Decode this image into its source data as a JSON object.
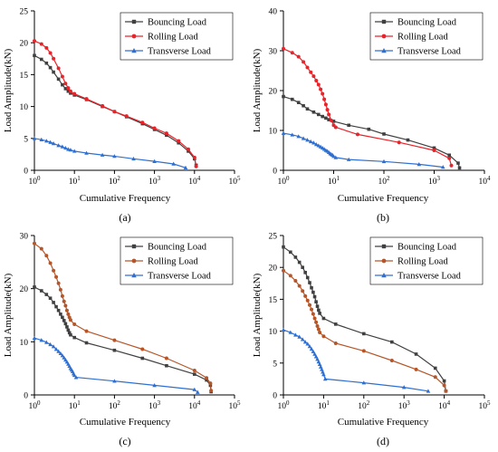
{
  "chart_data": [
    {
      "panel": "(a)",
      "type": "line",
      "xlabel": "Cumulative Frequency",
      "ylabel": "Load Amplitude(kN)",
      "xscale": "log",
      "xlim": [
        1,
        100000
      ],
      "ylim": [
        0,
        25
      ],
      "yticks": [
        0,
        5,
        10,
        15,
        20,
        25
      ],
      "legend": "top-right",
      "series": [
        {
          "name": "Bouncing Load",
          "color": "#404040",
          "marker": "square",
          "x": [
            1,
            1.5,
            2,
            2.5,
            3,
            4,
            5,
            6,
            7,
            8,
            10,
            20,
            50,
            100,
            200,
            500,
            1000,
            2000,
            4000,
            7000,
            10000,
            11000
          ],
          "y": [
            18,
            17.4,
            16.8,
            16.1,
            15.4,
            14.3,
            13.4,
            12.8,
            12.4,
            12.1,
            11.8,
            11.1,
            10,
            9.2,
            8.4,
            7.3,
            6.4,
            5.5,
            4.3,
            3,
            1.8,
            0.8
          ]
        },
        {
          "name": "Rolling Load",
          "color": "#e8242a",
          "marker": "circle",
          "x": [
            1,
            1.5,
            2,
            2.5,
            3,
            4,
            5,
            6,
            7,
            8,
            10,
            20,
            50,
            100,
            200,
            500,
            1000,
            2000,
            4000,
            7000,
            10000,
            11000
          ],
          "y": [
            20.3,
            19.8,
            19.2,
            18.4,
            17.5,
            16,
            14.7,
            13.6,
            12.9,
            12.4,
            12,
            11.2,
            10.1,
            9.2,
            8.5,
            7.5,
            6.6,
            5.8,
            4.6,
            3.3,
            2,
            0.6
          ]
        },
        {
          "name": "Transverse Load",
          "color": "#2e6fd1",
          "marker": "triangle",
          "x": [
            1,
            1.5,
            2,
            2.5,
            3,
            4,
            5,
            6,
            7,
            8,
            10,
            20,
            50,
            100,
            300,
            1000,
            3000,
            6000
          ],
          "y": [
            5,
            4.8,
            4.6,
            4.4,
            4.2,
            3.9,
            3.7,
            3.5,
            3.3,
            3.2,
            3,
            2.7,
            2.4,
            2.2,
            1.8,
            1.4,
            1,
            0.4
          ]
        }
      ]
    },
    {
      "panel": "(b)",
      "type": "line",
      "xlabel": "Cumulative Frequency",
      "ylabel": "Load Amplitude(kN)",
      "xscale": "log",
      "xlim": [
        1,
        10000
      ],
      "ylim": [
        0,
        40
      ],
      "yticks": [
        0,
        10,
        20,
        30,
        40
      ],
      "legend": "top-right",
      "series": [
        {
          "name": "Bouncing Load",
          "color": "#404040",
          "marker": "square",
          "x": [
            1,
            1.5,
            2,
            2.5,
            3,
            4,
            5,
            6,
            7,
            8,
            10,
            20,
            50,
            100,
            300,
            1000,
            2000,
            3000,
            3200
          ],
          "y": [
            18.5,
            17.8,
            17,
            16.2,
            15.4,
            14.6,
            14,
            13.5,
            13.1,
            12.7,
            12.3,
            11.3,
            10.3,
            9.1,
            7.6,
            5.6,
            3.8,
            1.8,
            0.6
          ]
        },
        {
          "name": "Rolling Load",
          "color": "#e8242a",
          "marker": "circle",
          "x": [
            1,
            1.5,
            2,
            2.5,
            3,
            3.5,
            4,
            4.5,
            5,
            5.5,
            6,
            6.5,
            7,
            7.5,
            8,
            9,
            10,
            11,
            30,
            200,
            1000,
            2000,
            2200
          ],
          "y": [
            30.5,
            29.5,
            28.5,
            27.2,
            25.8,
            24.6,
            23.6,
            22.5,
            21.5,
            20.3,
            19.2,
            17.8,
            16.5,
            15.2,
            14,
            12.5,
            11.3,
            10.8,
            9,
            7,
            5,
            3,
            1.2
          ]
        },
        {
          "name": "Transverse Load",
          "color": "#2e6fd1",
          "marker": "triangle",
          "x": [
            1,
            1.5,
            2,
            2.5,
            3,
            3.5,
            4,
            4.5,
            5,
            5.5,
            6,
            6.5,
            7,
            7.5,
            8,
            8.5,
            9,
            9.5,
            10,
            11,
            20,
            100,
            500,
            1500
          ],
          "y": [
            9.3,
            8.9,
            8.5,
            8,
            7.6,
            7.2,
            6.9,
            6.5,
            6.2,
            5.9,
            5.6,
            5.3,
            5,
            4.8,
            4.5,
            4.2,
            4,
            3.8,
            3.5,
            3.2,
            2.7,
            2.2,
            1.5,
            0.8
          ]
        }
      ]
    },
    {
      "panel": "(c)",
      "type": "line",
      "xlabel": "Cumulative Frequency",
      "ylabel": "Load Amplitude(kN)",
      "xscale": "log",
      "xlim": [
        1,
        100000
      ],
      "ylim": [
        0,
        30
      ],
      "yticks": [
        0,
        10,
        20,
        30
      ],
      "legend": "top-right",
      "series": [
        {
          "name": "Bouncing Load",
          "color": "#404040",
          "marker": "square",
          "x": [
            1,
            1.5,
            2,
            2.5,
            3,
            3.5,
            4,
            4.5,
            5,
            5.5,
            6,
            6.5,
            7,
            7.5,
            8,
            10,
            20,
            100,
            500,
            2000,
            10000,
            20000,
            25000,
            26000
          ],
          "y": [
            20.3,
            19.6,
            18.9,
            18.2,
            17.4,
            16.6,
            15.9,
            15.2,
            14.6,
            14,
            13.4,
            12.8,
            12.2,
            11.7,
            11.3,
            10.8,
            9.8,
            8.4,
            6.9,
            5.5,
            3.9,
            2.8,
            1.8,
            0.6
          ]
        },
        {
          "name": "Rolling Load",
          "color": "#b5562a",
          "marker": "circle",
          "x": [
            1,
            1.5,
            2,
            2.5,
            3,
            3.5,
            4,
            4.5,
            5,
            5.5,
            6,
            6.5,
            7,
            7.5,
            8,
            10,
            20,
            100,
            500,
            2000,
            10000,
            20000,
            25000,
            26000
          ],
          "y": [
            28.5,
            27.5,
            26.2,
            24.8,
            23.4,
            22.2,
            21,
            19.8,
            18.6,
            17.6,
            16.8,
            15.9,
            15.2,
            14.6,
            14.1,
            13.3,
            12,
            10.3,
            8.6,
            6.9,
            4.6,
            3.2,
            2.2,
            0.8
          ]
        },
        {
          "name": "Transverse Load",
          "color": "#2e6fd1",
          "marker": "triangle",
          "x": [
            1,
            1.5,
            2,
            2.5,
            3,
            3.5,
            4,
            4.5,
            5,
            5.5,
            6,
            6.5,
            7,
            7.5,
            8,
            8.5,
            9,
            9.5,
            10,
            11,
            100,
            1000,
            10000,
            12000
          ],
          "y": [
            10.7,
            10.3,
            9.9,
            9.5,
            9.1,
            8.6,
            8.2,
            7.8,
            7.4,
            7,
            6.6,
            6.2,
            5.8,
            5.4,
            5,
            4.7,
            4.4,
            4,
            3.7,
            3.3,
            2.6,
            1.8,
            1,
            0.5
          ]
        }
      ]
    },
    {
      "panel": "(d)",
      "type": "line",
      "xlabel": "Cumulative Frequency",
      "ylabel": "Load Amplitude(kN)",
      "xscale": "log",
      "xlim": [
        1,
        100000
      ],
      "ylim": [
        0,
        25
      ],
      "yticks": [
        0,
        5,
        10,
        15,
        20,
        25
      ],
      "legend": "top-right",
      "series": [
        {
          "name": "Bouncing Load",
          "color": "#404040",
          "marker": "square",
          "x": [
            1,
            1.5,
            2,
            2.5,
            3,
            3.5,
            4,
            4.5,
            5,
            5.5,
            6,
            6.5,
            7,
            7.5,
            8,
            10,
            20,
            100,
            500,
            2000,
            6000,
            10000,
            11000
          ],
          "y": [
            23.2,
            22.4,
            21.6,
            20.8,
            20,
            19.2,
            18.4,
            17.6,
            16.8,
            16.1,
            15.4,
            14.6,
            13.9,
            13.3,
            12.8,
            12,
            11.1,
            9.6,
            8.3,
            6.4,
            4.2,
            2.2,
            0.6
          ]
        },
        {
          "name": "Rolling Load",
          "color": "#b5562a",
          "marker": "circle",
          "x": [
            1,
            1.5,
            2,
            2.5,
            3,
            3.5,
            4,
            4.5,
            5,
            5.5,
            6,
            6.5,
            7,
            7.5,
            8,
            10,
            20,
            100,
            500,
            2000,
            6000,
            10000,
            11000
          ],
          "y": [
            19.5,
            18.7,
            17.9,
            17.1,
            16.3,
            15.5,
            14.8,
            14.1,
            13.4,
            12.7,
            12,
            11.4,
            10.8,
            10.3,
            9.8,
            9.2,
            8.1,
            6.9,
            5.4,
            4,
            2.8,
            1.5,
            0.6
          ]
        },
        {
          "name": "Transverse Load",
          "color": "#2e6fd1",
          "marker": "triangle",
          "x": [
            1,
            1.5,
            2,
            2.5,
            3,
            3.5,
            4,
            4.5,
            5,
            5.5,
            6,
            6.5,
            7,
            7.5,
            8,
            8.5,
            9,
            9.5,
            10,
            11,
            100,
            1000,
            4000
          ],
          "y": [
            10.2,
            9.8,
            9.4,
            9.1,
            8.7,
            8.3,
            8,
            7.6,
            7.2,
            6.8,
            6.4,
            6,
            5.6,
            5.2,
            4.8,
            4.4,
            4,
            3.6,
            3.2,
            2.5,
            1.9,
            1.2,
            0.6
          ]
        }
      ]
    }
  ]
}
